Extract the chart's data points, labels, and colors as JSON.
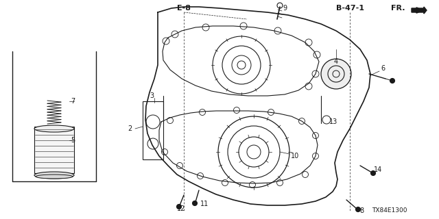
{
  "bg_color": "#ffffff",
  "line_color": "#1a1a1a",
  "fig_width": 6.4,
  "fig_height": 3.2,
  "dpi": 100,
  "title_code": "TX84E1300",
  "ref_E8": "E-8",
  "ref_B471": "B-47-1",
  "ref_arrow": "FR.",
  "parts": [
    "2",
    "3",
    "4",
    "5",
    "6",
    "7",
    "8",
    "9",
    "10",
    "11",
    "12",
    "13",
    "14"
  ]
}
